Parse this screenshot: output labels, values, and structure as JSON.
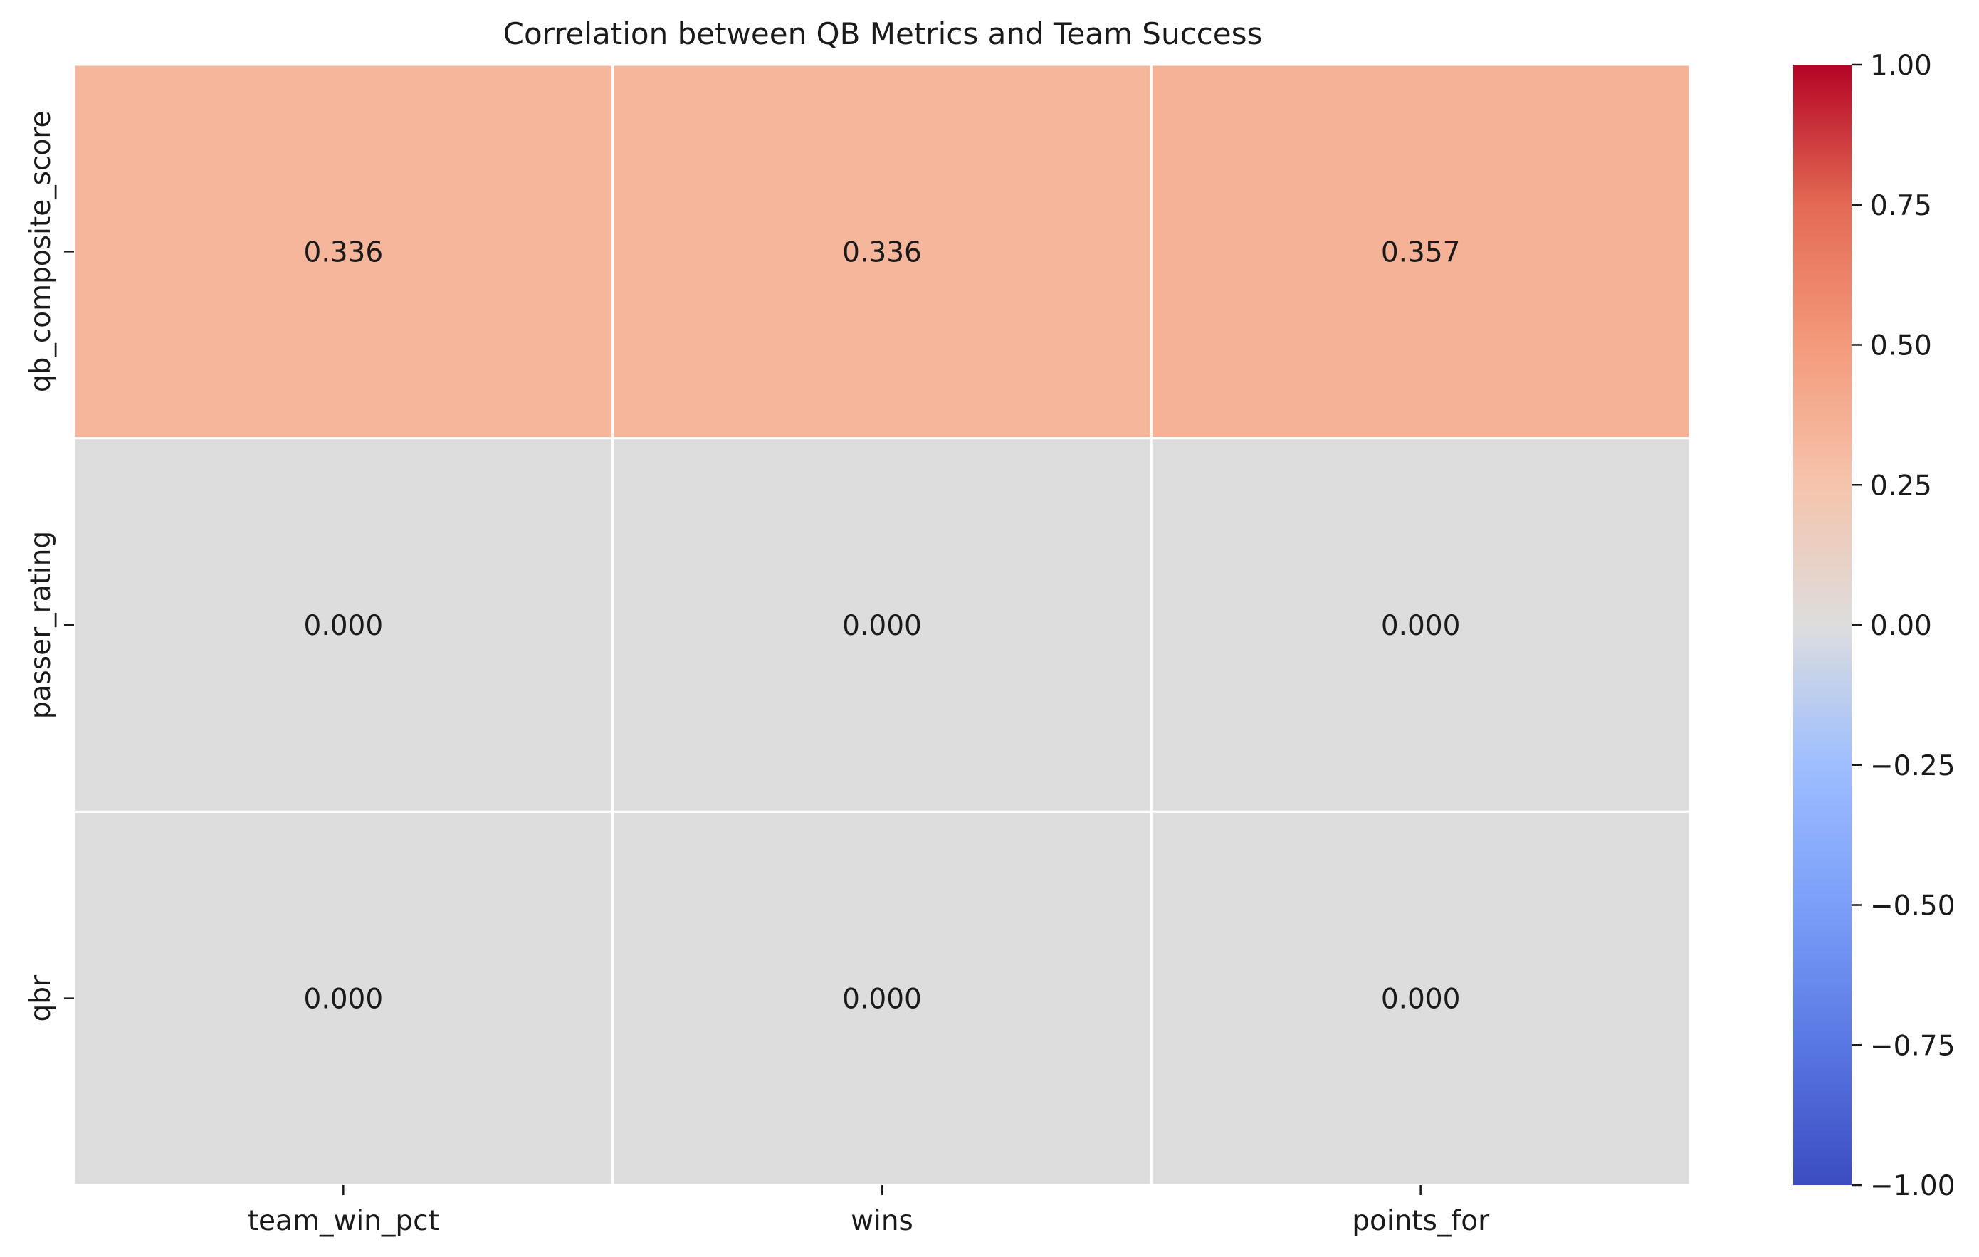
{
  "chart_data": {
    "type": "heatmap",
    "title": "Correlation between QB Metrics and Team Success",
    "xlabel": "",
    "ylabel": "",
    "rows": [
      "qb_composite_score",
      "passer_rating",
      "qbr"
    ],
    "columns": [
      "team_win_pct",
      "wins",
      "points_for"
    ],
    "values": [
      [
        0.336,
        0.336,
        0.357
      ],
      [
        0.0,
        0.0,
        0.0
      ],
      [
        0.0,
        0.0,
        0.0
      ]
    ],
    "value_labels": [
      [
        "0.336",
        "0.336",
        "0.357"
      ],
      [
        "0.000",
        "0.000",
        "0.000"
      ],
      [
        "0.000",
        "0.000",
        "0.000"
      ]
    ],
    "colormap": "coolwarm",
    "colorbar": {
      "range": [
        -1.0,
        1.0
      ],
      "ticks": [
        1.0,
        0.75,
        0.5,
        0.25,
        0.0,
        -0.25,
        -0.5,
        -0.75,
        -1.0
      ],
      "tick_labels": [
        "1.00",
        "0.75",
        "0.50",
        "0.25",
        "0.00",
        "−0.25",
        "−0.50",
        "−0.75",
        "−1.00"
      ],
      "placement": "right"
    },
    "grid": true,
    "colors": {
      "cell_0336": "#f6b59a",
      "cell_0357": "#f6b396",
      "cell_zero": "#dddddd",
      "cell_border": "#ffffff"
    }
  }
}
